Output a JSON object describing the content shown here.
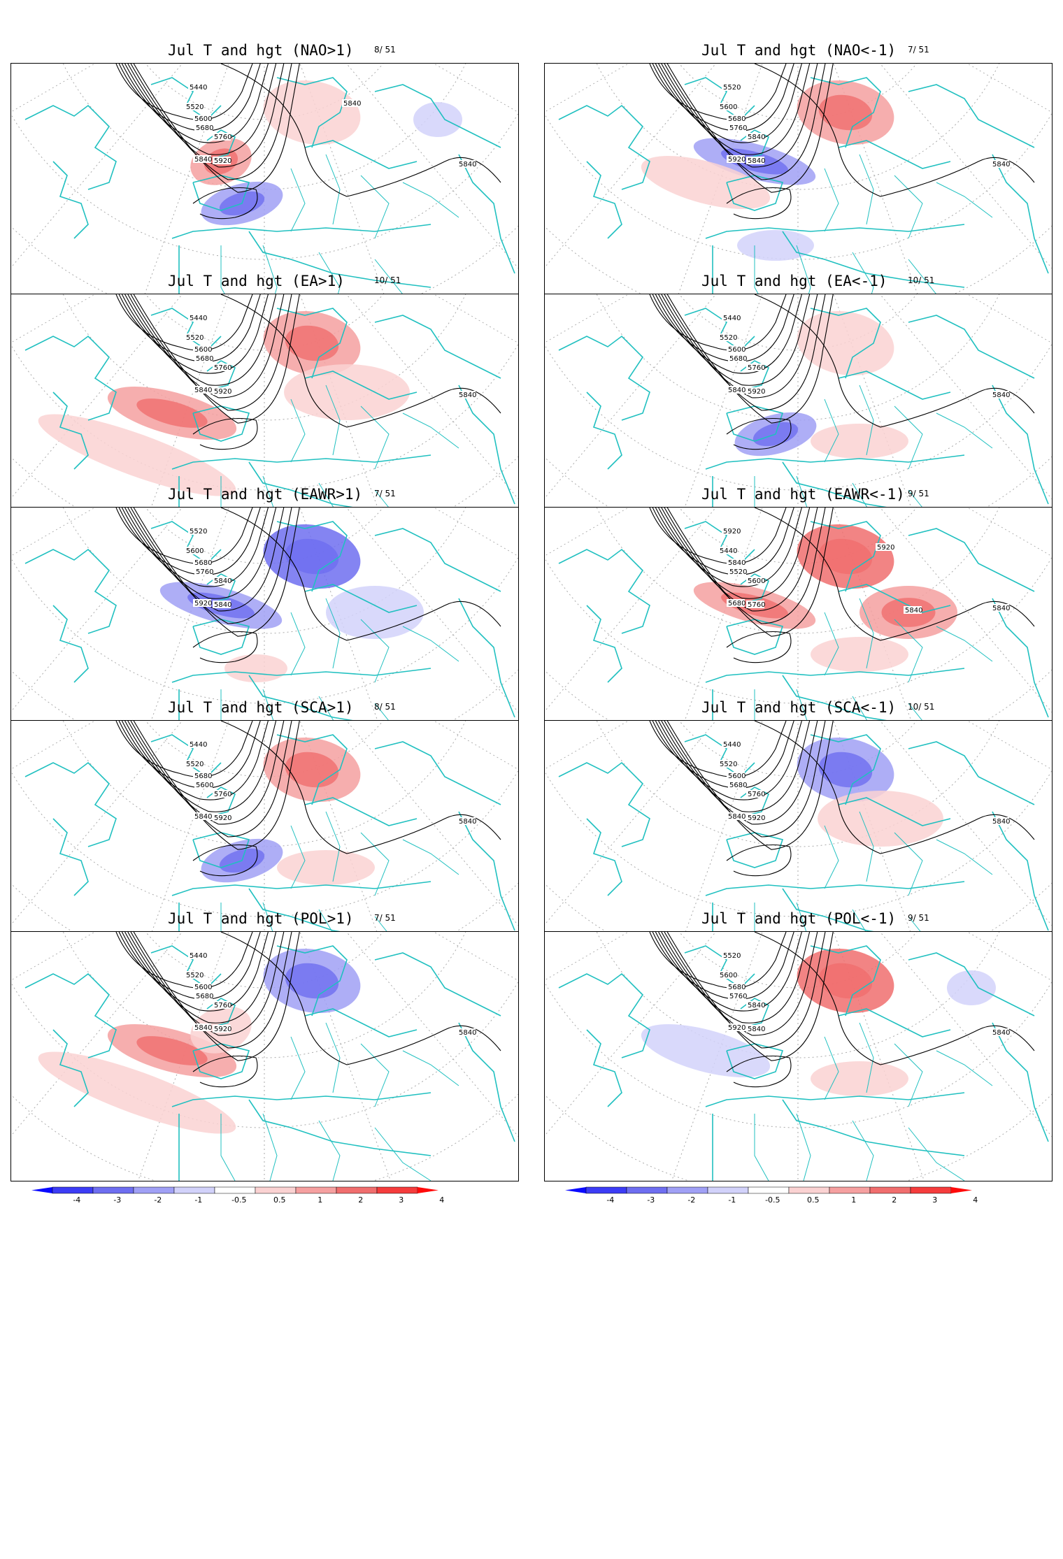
{
  "panels": [
    {
      "title": "Jul T and hgt (NAO>1)",
      "count": "8/ 51",
      "contour_labels": [
        "5440",
        "5520",
        "5600",
        "5680",
        "5760",
        "5840",
        "5920",
        "5840",
        "5840"
      ],
      "anomalies": [
        {
          "sign": "pos",
          "level": 2,
          "region": "british-isles-north-sea"
        },
        {
          "sign": "pos",
          "level": 1,
          "region": "scandinavia"
        },
        {
          "sign": "neg",
          "level": 2,
          "region": "iberia-west"
        },
        {
          "sign": "neg",
          "level": 1,
          "region": "russia-north"
        }
      ]
    },
    {
      "title": "Jul T and hgt (NAO<-1)",
      "count": "7/ 51",
      "contour_labels": [
        "5520",
        "5600",
        "5680",
        "5760",
        "5840",
        "5920",
        "5840",
        "5840"
      ],
      "anomalies": [
        {
          "sign": "neg",
          "level": 2,
          "region": "north-atlantic"
        },
        {
          "sign": "pos",
          "level": 2,
          "region": "scandinavia"
        },
        {
          "sign": "pos",
          "level": 1,
          "region": "central-atlantic"
        },
        {
          "sign": "neg",
          "level": 1,
          "region": "north-africa"
        }
      ]
    },
    {
      "title": "Jul T and hgt (EA>1)",
      "count": "10/ 51",
      "contour_labels": [
        "5440",
        "5520",
        "5600",
        "5680",
        "5760",
        "5840",
        "5920",
        "5840"
      ],
      "anomalies": [
        {
          "sign": "pos",
          "level": 2,
          "region": "central-atlantic"
        },
        {
          "sign": "pos",
          "level": 2,
          "region": "scandinavia"
        },
        {
          "sign": "pos",
          "level": 1,
          "region": "subtropical-atlantic"
        },
        {
          "sign": "pos",
          "level": 1,
          "region": "europe"
        }
      ]
    },
    {
      "title": "Jul T and hgt (EA<-1)",
      "count": "10/ 51",
      "contour_labels": [
        "5440",
        "5520",
        "5600",
        "5680",
        "5760",
        "5840",
        "5920",
        "5840"
      ],
      "anomalies": [
        {
          "sign": "neg",
          "level": 2,
          "region": "iberia-west"
        },
        {
          "sign": "pos",
          "level": 1,
          "region": "scandinavia"
        },
        {
          "sign": "pos",
          "level": 1,
          "region": "mediterranean"
        }
      ]
    },
    {
      "title": "Jul T and hgt (EAWR>1)",
      "count": "7/ 51",
      "contour_labels": [
        "5520",
        "5600",
        "5680",
        "5760",
        "5840",
        "5920",
        "5840"
      ],
      "anomalies": [
        {
          "sign": "neg",
          "level": 3,
          "region": "scandinavia"
        },
        {
          "sign": "neg",
          "level": 2,
          "region": "north-atlantic"
        },
        {
          "sign": "neg",
          "level": 1,
          "region": "eastern-europe"
        },
        {
          "sign": "pos",
          "level": 1,
          "region": "iberia"
        }
      ]
    },
    {
      "title": "Jul T and hgt (EAWR<-1)",
      "count": "9/ 51",
      "contour_labels": [
        "5920",
        "5440",
        "5840",
        "5520",
        "5600",
        "5680",
        "5760",
        "5840",
        "5920",
        "5840"
      ],
      "anomalies": [
        {
          "sign": "pos",
          "level": 3,
          "region": "scandinavia"
        },
        {
          "sign": "pos",
          "level": 2,
          "region": "north-atlantic"
        },
        {
          "sign": "pos",
          "level": 2,
          "region": "eastern-europe"
        },
        {
          "sign": "pos",
          "level": 1,
          "region": "mediterranean"
        }
      ]
    },
    {
      "title": "Jul T and hgt (SCA>1)",
      "count": "8/ 51",
      "contour_labels": [
        "5440",
        "5520",
        "5680",
        "5600",
        "5760",
        "5840",
        "5920",
        "5840"
      ],
      "anomalies": [
        {
          "sign": "neg",
          "level": 2,
          "region": "iberia-west"
        },
        {
          "sign": "pos",
          "level": 2,
          "region": "scandinavia"
        },
        {
          "sign": "pos",
          "level": 1,
          "region": "mediterranean"
        }
      ]
    },
    {
      "title": "Jul T and hgt (SCA<-1)",
      "count": "10/ 51",
      "contour_labels": [
        "5440",
        "5520",
        "5600",
        "5680",
        "5760",
        "5840",
        "5920",
        "5840"
      ],
      "anomalies": [
        {
          "sign": "neg",
          "level": 2,
          "region": "scandinavia"
        },
        {
          "sign": "pos",
          "level": 1,
          "region": "europe"
        }
      ]
    },
    {
      "title": "Jul T and hgt (POL>1)",
      "count": "7/ 51",
      "contour_labels": [
        "5440",
        "5520",
        "5600",
        "5680",
        "5760",
        "5840",
        "5920",
        "5840"
      ],
      "anomalies": [
        {
          "sign": "neg",
          "level": 2,
          "region": "scandinavia"
        },
        {
          "sign": "pos",
          "level": 2,
          "region": "central-atlantic"
        },
        {
          "sign": "pos",
          "level": 1,
          "region": "subtropical-atlantic"
        },
        {
          "sign": "pos",
          "level": 1,
          "region": "british-isles-north-sea"
        }
      ]
    },
    {
      "title": "Jul T and hgt (POL<-1)",
      "count": "9/ 51",
      "contour_labels": [
        "5520",
        "5600",
        "5680",
        "5760",
        "5840",
        "5920",
        "5840",
        "5840"
      ],
      "anomalies": [
        {
          "sign": "pos",
          "level": 3,
          "region": "scandinavia"
        },
        {
          "sign": "neg",
          "level": 1,
          "region": "russia-north"
        },
        {
          "sign": "neg",
          "level": 1,
          "region": "central-atlantic"
        },
        {
          "sign": "pos",
          "level": 1,
          "region": "mediterranean"
        }
      ]
    }
  ],
  "colorbar": {
    "labels": [
      "-4",
      "-3",
      "-2",
      "-1",
      "-0.5",
      "0.5",
      "1",
      "2",
      "3",
      "4"
    ],
    "colors": [
      "#0a0aff",
      "#3c3cf5",
      "#6e6ef0",
      "#a0a0f5",
      "#d2d2fa",
      "#ffffff",
      "#fad2d2",
      "#f5a0a0",
      "#f06e6e",
      "#f53c3c",
      "#ff0a0a"
    ]
  },
  "colors": {
    "coastline": "#20c0c0",
    "contour": "#000000",
    "graticule": "#aaaaaa"
  }
}
